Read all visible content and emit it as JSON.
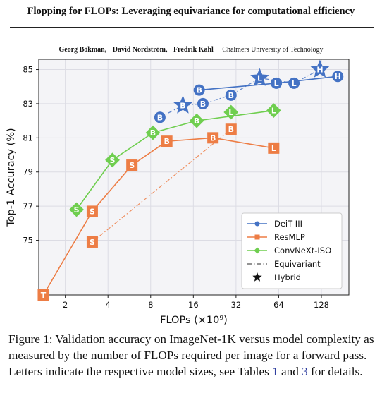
{
  "paper": {
    "title": "Flopping for FLOPs: Leveraging equivariance for computational efficiency",
    "authors": [
      "Georg Bökman,",
      "David Nordström,",
      "Fredrik Kahl"
    ],
    "affiliation": "Chalmers University of Technology"
  },
  "figure": {
    "caption_parts": [
      {
        "text": "Figure 1: Validation accuracy on ImageNet-1K versus model complexity as measured by the number of FLOPs required per image for a forward pass. Letters indicate the respective model sizes, see Tables ",
        "ref": false
      },
      {
        "text": "1",
        "ref": true
      },
      {
        "text": " and ",
        "ref": false
      },
      {
        "text": "3",
        "ref": true
      },
      {
        "text": " for details.",
        "ref": false
      }
    ]
  },
  "chart_data": {
    "type": "scatter",
    "xlabel": "FLOPs (×10⁹)",
    "ylabel": "Top-1 Accuracy (%)",
    "x_scale": "log2",
    "xlim": [
      1.3,
      200
    ],
    "ylim": [
      71.8,
      85.6
    ],
    "xticks": [
      2,
      4,
      8,
      16,
      32,
      64,
      128
    ],
    "xtick_labels": [
      "2",
      "4",
      "8",
      "16",
      "32",
      "64",
      "128"
    ],
    "yticks": [
      75,
      77,
      79,
      81,
      83,
      85
    ],
    "ytick_labels": [
      "75",
      "77",
      "79",
      "81",
      "83",
      "85"
    ],
    "grid": true,
    "legend_position": "lower-right",
    "series": [
      {
        "name": "DeiT III",
        "color": "#4472c4",
        "marker": "circle",
        "baseline": [
          {
            "size": "B",
            "flops": 17.6,
            "acc": 83.8
          },
          {
            "size": "L",
            "flops": 61.6,
            "acc": 84.2
          },
          {
            "size": "H",
            "flops": 167.0,
            "acc": 84.6
          }
        ],
        "equivariant": [
          {
            "size": "B",
            "flops": 9.3,
            "acc": 82.2,
            "hybrid": false
          },
          {
            "size": "B",
            "flops": 18.7,
            "acc": 83.0,
            "hybrid": false
          },
          {
            "size": "B",
            "flops": 29.5,
            "acc": 83.5,
            "hybrid": false
          },
          {
            "size": "L",
            "flops": 82.0,
            "acc": 84.2,
            "hybrid": false
          }
        ],
        "hybrid": [
          {
            "size": "B",
            "flops": 13.5,
            "acc": 82.9
          },
          {
            "size": "L",
            "flops": 47.0,
            "acc": 84.5
          },
          {
            "size": "H",
            "flops": 125.0,
            "acc": 85.0
          }
        ]
      },
      {
        "name": "ResMLP",
        "color": "#ed7d45",
        "marker": "square",
        "baseline": [
          {
            "size": "T",
            "flops": 1.4,
            "acc": 71.8
          },
          {
            "size": "S",
            "flops": 3.1,
            "acc": 76.7
          },
          {
            "size": "S",
            "flops": 5.9,
            "acc": 79.4
          },
          {
            "size": "B",
            "flops": 10.4,
            "acc": 80.8
          },
          {
            "size": "B",
            "flops": 22.0,
            "acc": 81.0
          },
          {
            "size": "L",
            "flops": 59.0,
            "acc": 80.4
          }
        ],
        "equivariant": [
          {
            "size": "S",
            "flops": 3.1,
            "acc": 74.9,
            "hybrid": false
          },
          {
            "size": "B",
            "flops": 29.5,
            "acc": 81.5,
            "hybrid": false
          }
        ],
        "hybrid": []
      },
      {
        "name": "ConvNeXt-ISO",
        "color": "#6fce4f",
        "marker": "diamond",
        "baseline": [
          {
            "size": "S",
            "flops": 2.4,
            "acc": 76.8
          },
          {
            "size": "S",
            "flops": 4.3,
            "acc": 79.7
          },
          {
            "size": "B",
            "flops": 8.3,
            "acc": 81.3
          },
          {
            "size": "B",
            "flops": 16.9,
            "acc": 82.0
          },
          {
            "size": "L",
            "flops": 59.0,
            "acc": 82.6
          }
        ],
        "equivariant": [
          {
            "size": "L",
            "flops": 29.5,
            "acc": 82.5,
            "hybrid": false
          }
        ],
        "hybrid": []
      }
    ],
    "legend": [
      {
        "label": "DeiT III",
        "kind": "solid-circle",
        "color": "#4472c4"
      },
      {
        "label": "ResMLP",
        "kind": "solid-square",
        "color": "#ed7d45"
      },
      {
        "label": "ConvNeXt-ISO",
        "kind": "solid-diamond",
        "color": "#6fce4f"
      },
      {
        "label": "Equivariant",
        "kind": "dashdot",
        "color": "#555555"
      },
      {
        "label": "Hybrid",
        "kind": "star",
        "color": "#111111"
      }
    ]
  }
}
